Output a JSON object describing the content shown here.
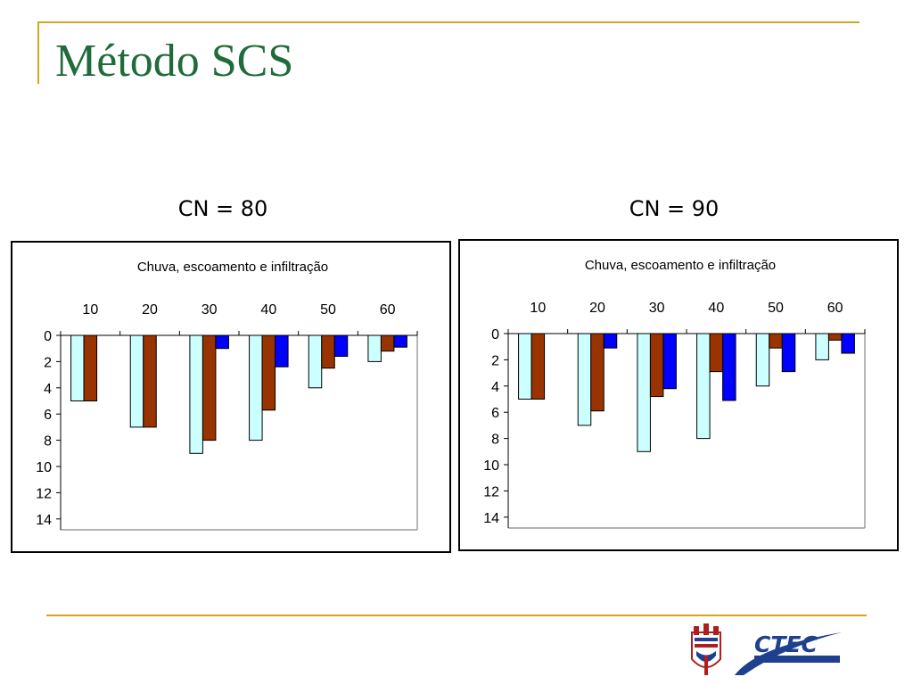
{
  "slide": {
    "title": "Método SCS"
  },
  "colors": {
    "title": "#1f6b3a",
    "accent_line": "#d9a520",
    "rain_bar": "#ccffff",
    "runoff_bar": "#993300",
    "infiltration_bar": "#0000ff"
  },
  "charts": {
    "cn80_heading": "CN = 80",
    "cn90_heading": "CN = 90"
  },
  "chart_data": [
    {
      "type": "bar",
      "title": "Chuva, escoamento e infiltração",
      "categories": [
        "10",
        "20",
        "30",
        "40",
        "50",
        "60"
      ],
      "series": [
        {
          "values": [
            5,
            7,
            9,
            8,
            4,
            2
          ],
          "color": "#ccffff"
        },
        {
          "values": [
            5,
            7,
            8,
            5.7,
            2.5,
            1.2
          ],
          "color": "#993300"
        },
        {
          "values": [
            0,
            0,
            1,
            2.4,
            1.6,
            0.9
          ],
          "color": "#0000ff"
        }
      ],
      "yticks": [
        "0",
        "2",
        "4",
        "6",
        "8",
        "10",
        "12",
        "14"
      ],
      "ylim": [
        0,
        14
      ],
      "y_inverted": true,
      "x_axis_position": "top",
      "grid": false,
      "legend": "none"
    },
    {
      "type": "bar",
      "title": "Chuva, escoamento e infiltração",
      "categories": [
        "10",
        "20",
        "30",
        "40",
        "50",
        "60"
      ],
      "series": [
        {
          "values": [
            5,
            7,
            9,
            8,
            4,
            2
          ],
          "color": "#ccffff"
        },
        {
          "values": [
            5,
            5.9,
            4.8,
            2.9,
            1.1,
            0.5
          ],
          "color": "#993300"
        },
        {
          "values": [
            0,
            1.1,
            4.2,
            5.1,
            2.9,
            1.5
          ],
          "color": "#0000ff"
        }
      ],
      "yticks": [
        "0",
        "2",
        "4",
        "6",
        "8",
        "10",
        "12",
        "14"
      ],
      "ylim": [
        0,
        14
      ],
      "y_inverted": true,
      "x_axis_position": "top",
      "grid": false,
      "legend": "none"
    }
  ]
}
